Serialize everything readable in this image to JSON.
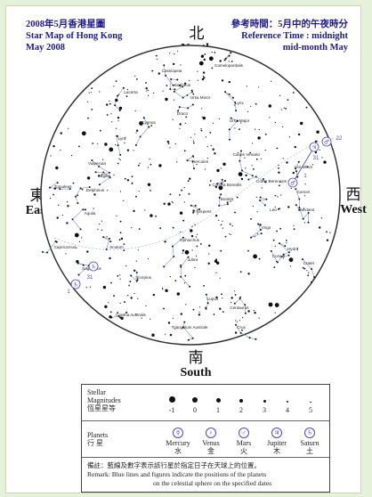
{
  "header_left": {
    "line1": "2008年5月香港星圖",
    "line2": "Star Map of Hong Kong",
    "line3": "May 2008"
  },
  "header_right": {
    "line1": "參考時間：5月中的午夜時分",
    "line2": "Reference Time : midnight",
    "line3": "mid-month May"
  },
  "compass": {
    "north_cn": "北",
    "north_en": "North",
    "south_cn": "南",
    "south_en": "South",
    "east_cn": "東",
    "east_en": "East",
    "west_cn": "西",
    "west_en": "West"
  },
  "constellations": [
    "Cassiopeia",
    "Camelopardalis",
    "Lacerta",
    "Cepheus",
    "Ursa Minor",
    "Lynx",
    "Draco",
    "Ursa Major",
    "Cygnus",
    "Lyra",
    "Hercules",
    "Canes Venatici",
    "Vulpecula",
    "Sagitta",
    "Delphinus",
    "Equuleus",
    "Corona Borealis",
    "Coma Berenices",
    "Cancer",
    "Leo Minor",
    "Serpens",
    "Bootes",
    "Leo",
    "Aquila",
    "Ophiuchus",
    "Virgo",
    "Sextans",
    "Capricornus",
    "Scutum",
    "Libra",
    "Corvus",
    "Crater",
    "Hydra",
    "Sagittarius",
    "Scorpius",
    "Corona Australis",
    "Lupus",
    "Centaurus",
    "Triangulum Australe",
    "Crux"
  ],
  "planet_marks": [
    {
      "symbol": "♃",
      "label": "31"
    },
    {
      "symbol": "♂",
      "label": "22"
    },
    {
      "symbol": "♂",
      "label": "1"
    },
    {
      "symbol": "♄",
      "label": "31"
    },
    {
      "symbol": "♄",
      "label": "1"
    }
  ],
  "legend": {
    "stellar_label_1": "Stellar",
    "stellar_label_2": "Magnitudes",
    "stellar_label_cn": "恆星星等",
    "magnitudes": [
      "-1",
      "0",
      "1",
      "2",
      "3",
      "4",
      "5"
    ],
    "planets_label": "Planets",
    "planets_label_cn": "行 星",
    "planets": [
      {
        "symbol": "☿",
        "en": "Mercury",
        "cn": "水"
      },
      {
        "symbol": "♀",
        "en": "Venus",
        "cn": "金"
      },
      {
        "symbol": "♂",
        "en": "Mars",
        "cn": "火"
      },
      {
        "symbol": "♃",
        "en": "Jupiter",
        "cn": "木"
      },
      {
        "symbol": "♄",
        "en": "Saturn",
        "cn": "土"
      }
    ],
    "remark_cn": "備註：藍線及數字表示該行星於指定日子在天球上的位置。",
    "remark_en_1": "Remark: Blue lines and figures indicate the positions of the planets",
    "remark_en_2": "on the celestial sphere on the specified dates"
  },
  "colors": {
    "background": "#e6f1d9",
    "header_text": "#1f1a8c",
    "constellation_lines": "#7a8fc9",
    "planet_marks": "#4b4ac7"
  }
}
